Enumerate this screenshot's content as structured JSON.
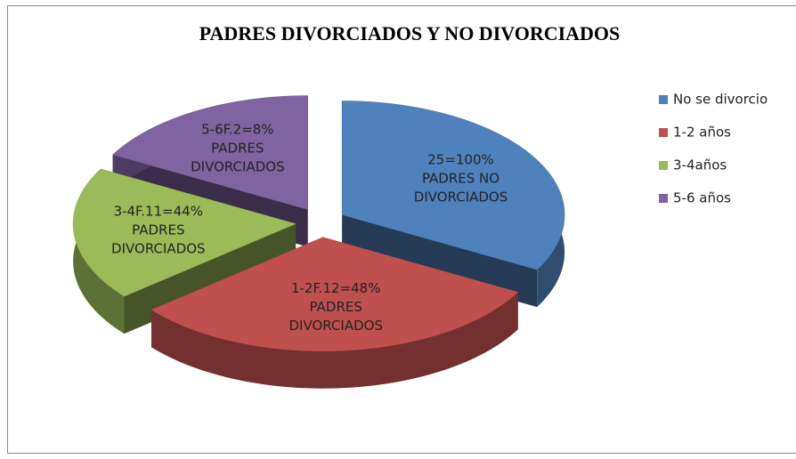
{
  "chart_data": {
    "type": "pie3d",
    "title": "PADRES DIVORCIADOS Y NO DIVORCIADOS",
    "categories": [
      "No se divorcio",
      "1-2 años",
      "3-4años",
      "5-6 años"
    ],
    "values": [
      33,
      31,
      19,
      17
    ],
    "colors": [
      "#4f81bd",
      "#c0504d",
      "#9bbb59",
      "#8064a2"
    ],
    "slice_labels": [
      [
        "25=100%",
        "PADRES NO",
        "DIVORCIADOS"
      ],
      [
        "1-2F.12=48%",
        "PADRES",
        "DIVORCIADOS"
      ],
      [
        "3-4F.11=44%",
        "PADRES",
        "DIVORCIADOS"
      ],
      [
        "5-6F.2=8%",
        "PADRES",
        "DIVORCIADOS"
      ]
    ],
    "legend": "right"
  }
}
